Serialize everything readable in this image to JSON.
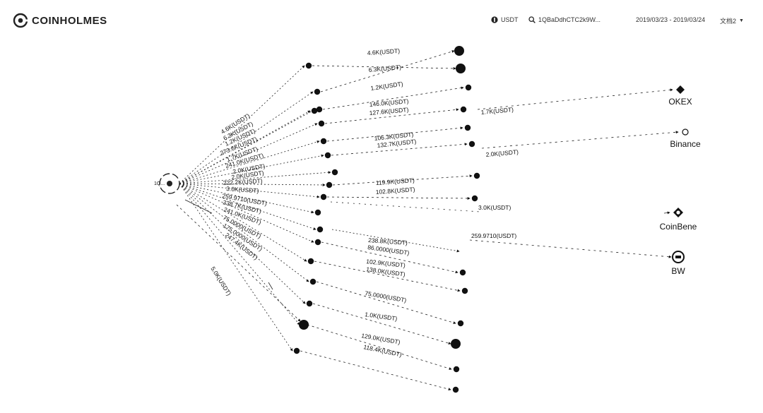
{
  "header": {
    "brand": "COINHOLMES",
    "currency": "USDT",
    "search_value": "1QBaDdhCTC2k9W...",
    "date_range": "2019/03/23 - 2019/03/24",
    "menu_label": "文档2"
  },
  "graph": {
    "center_label": "1Q...",
    "exchanges": [
      "OKEX",
      "Binance",
      "CoinBene",
      "BW"
    ],
    "left_labels": [
      "4.6K(USDT)",
      "6.3K(USDT)",
      "1.2K(USDT)",
      "273.6K(USDT)",
      "1.7K(USDT)",
      "241.0K(USDT)",
      "2.0K(USDT)",
      "2.0K(USDT)",
      "222.2K(USDT)",
      "3.0K(USDT)",
      "259.9710(USDT)",
      "238.7K(USDT)",
      "241.0K(USDT)",
      "75.0000(USDT)",
      "175.0000(USDT)",
      "247.4K(USDT)",
      "5.0K(USDT)"
    ],
    "middle_labels": [
      "4.6K(USDT)",
      "6.3K(USDT)",
      "1.2K(USDT)",
      "146.0K(USDT)",
      "127.6K(USDT)",
      "106.3K(USDT)",
      "132.7K(USDT)",
      "119.9K(USDT)",
      "102.8K(USDT)",
      "238.8K(USDT)",
      "86.0000(USDT)",
      "102.9K(USDT)",
      "138.0K(USDT)",
      "75.0000(USDT)",
      "1.0K(USDT)",
      "129.0K(USDT)",
      "118.4K(USDT)"
    ],
    "right_labels": [
      "1.7K(USDT)",
      "2.0K(USDT)",
      "3.0K(USDT)",
      "259.9710(USDT)"
    ]
  }
}
